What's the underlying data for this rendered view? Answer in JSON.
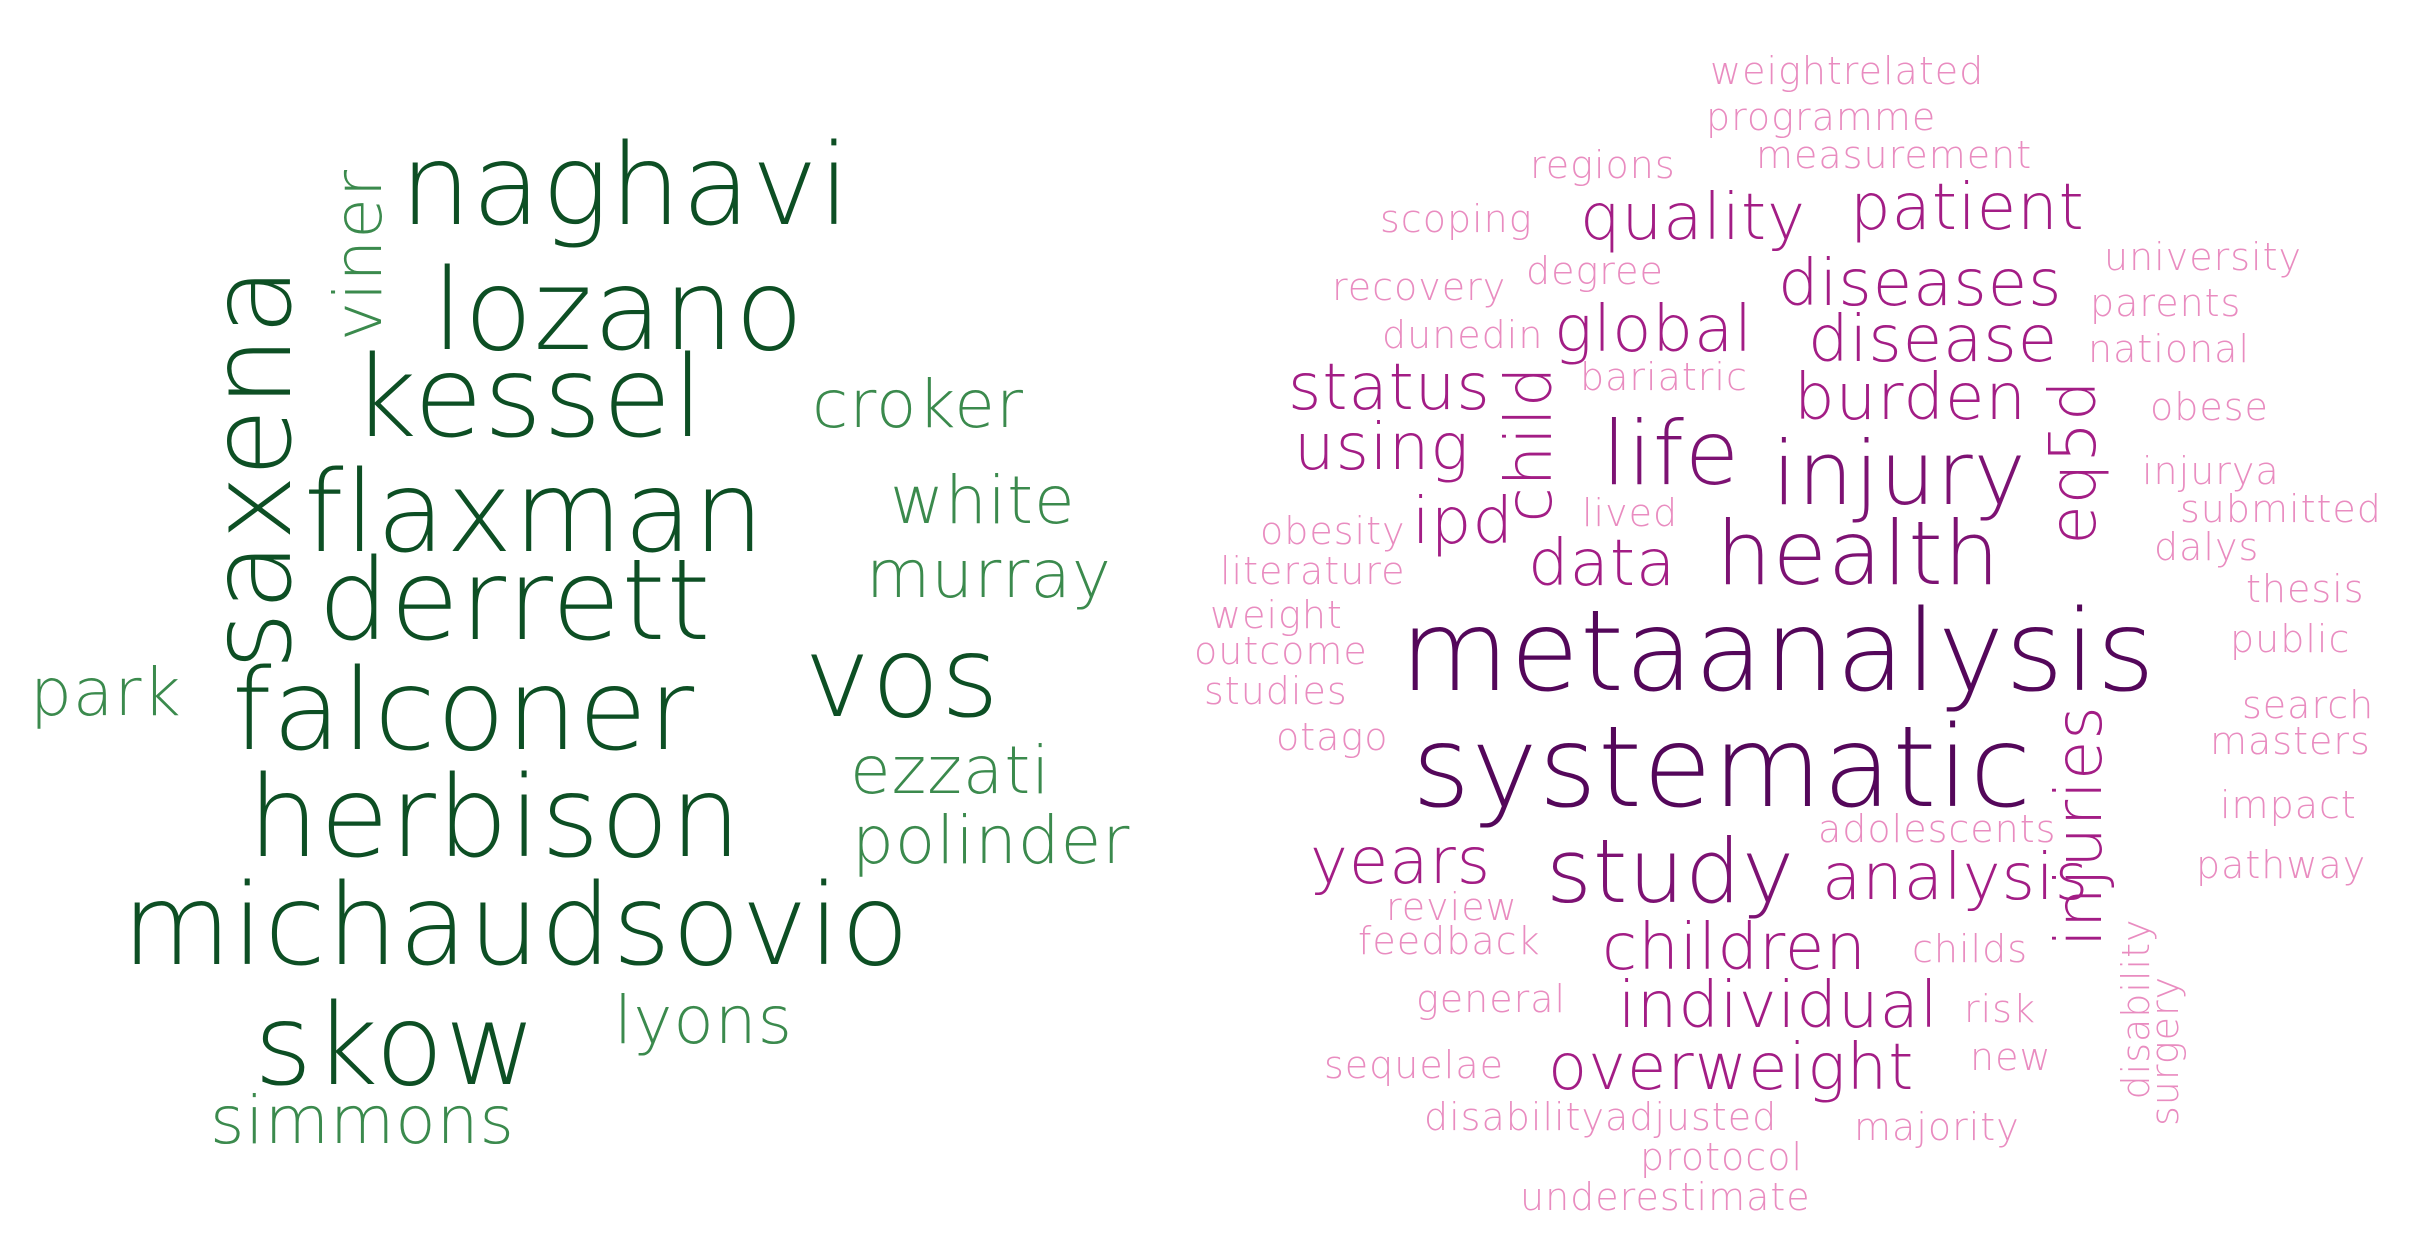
{
  "colors": {
    "green_dark": "#0d4f24",
    "green_mid": "#1e6b34",
    "green_light": "#3b8a4d",
    "purple_dark": "#54075a",
    "purple": "#7d1273",
    "magenta": "#a31d85",
    "pink": "#d65fa6",
    "pink_light": "#e98cc0"
  },
  "left_cloud": {
    "words": [
      {
        "text": "naghavi"
      },
      {
        "text": "lozano"
      },
      {
        "text": "kessel"
      },
      {
        "text": "flaxman"
      },
      {
        "text": "derrett"
      },
      {
        "text": "falconer"
      },
      {
        "text": "herbison"
      },
      {
        "text": "michaudsovio"
      },
      {
        "text": "skow"
      },
      {
        "text": "saxena"
      },
      {
        "text": "vos"
      },
      {
        "text": "viner"
      },
      {
        "text": "croker"
      },
      {
        "text": "white"
      },
      {
        "text": "murray"
      },
      {
        "text": "park"
      },
      {
        "text": "ezzati"
      },
      {
        "text": "polinder"
      },
      {
        "text": "lyons"
      },
      {
        "text": "simmons"
      }
    ]
  },
  "right_cloud": {
    "words": [
      {
        "text": "weightrelated"
      },
      {
        "text": "programme"
      },
      {
        "text": "regions"
      },
      {
        "text": "measurement"
      },
      {
        "text": "scoping"
      },
      {
        "text": "quality"
      },
      {
        "text": "patient"
      },
      {
        "text": "university"
      },
      {
        "text": "recovery"
      },
      {
        "text": "degree"
      },
      {
        "text": "diseases"
      },
      {
        "text": "parents"
      },
      {
        "text": "dunedin"
      },
      {
        "text": "global"
      },
      {
        "text": "disease"
      },
      {
        "text": "national"
      },
      {
        "text": "status"
      },
      {
        "text": "bariatric"
      },
      {
        "text": "burden"
      },
      {
        "text": "obese"
      },
      {
        "text": "using"
      },
      {
        "text": "child"
      },
      {
        "text": "life"
      },
      {
        "text": "injury"
      },
      {
        "text": "eq5d"
      },
      {
        "text": "injurya"
      },
      {
        "text": "obesity"
      },
      {
        "text": "ipd"
      },
      {
        "text": "lived"
      },
      {
        "text": "submitted"
      },
      {
        "text": "literature"
      },
      {
        "text": "data"
      },
      {
        "text": "health"
      },
      {
        "text": "dalys"
      },
      {
        "text": "weight"
      },
      {
        "text": "thesis"
      },
      {
        "text": "outcome"
      },
      {
        "text": "metaanalysis"
      },
      {
        "text": "public"
      },
      {
        "text": "studies"
      },
      {
        "text": "otago"
      },
      {
        "text": "systematic"
      },
      {
        "text": "search"
      },
      {
        "text": "masters"
      },
      {
        "text": "injuries"
      },
      {
        "text": "impact"
      },
      {
        "text": "adolescents"
      },
      {
        "text": "years"
      },
      {
        "text": "study"
      },
      {
        "text": "analysis"
      },
      {
        "text": "pathway"
      },
      {
        "text": "review"
      },
      {
        "text": "feedback"
      },
      {
        "text": "children"
      },
      {
        "text": "childs"
      },
      {
        "text": "disability"
      },
      {
        "text": "general"
      },
      {
        "text": "individual"
      },
      {
        "text": "risk"
      },
      {
        "text": "surgery"
      },
      {
        "text": "sequelae"
      },
      {
        "text": "overweight"
      },
      {
        "text": "new"
      },
      {
        "text": "disabilityadjusted"
      },
      {
        "text": "majority"
      },
      {
        "text": "protocol"
      },
      {
        "text": "underestimate"
      }
    ]
  }
}
